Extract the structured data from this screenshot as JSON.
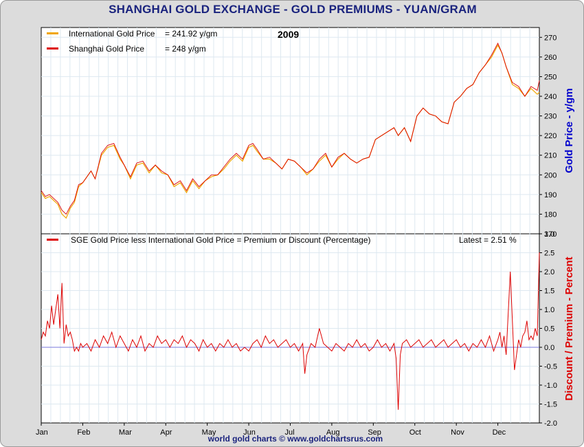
{
  "title": "SHANGHAI GOLD EXCHANGE - GOLD PREMIUMS - YUAN/GRAM",
  "footer": "world gold charts © www.goldchartsrus.com",
  "colors": {
    "intl": "#f0a500",
    "sge": "#dd0000",
    "axis_right_top": "#0000cc",
    "axis_right_bottom": "#dd0000",
    "zero_line": "#7777dd",
    "grid": "#dde8f0"
  },
  "chart_data": [
    {
      "type": "line",
      "year_label": "2009",
      "ylabel": "Gold Price - y/gm",
      "ylim": [
        170,
        275
      ],
      "yticks": [
        170,
        180,
        190,
        200,
        210,
        220,
        230,
        240,
        250,
        260,
        270
      ],
      "xticks": [
        "Jan",
        "Feb",
        "Mar",
        "Apr",
        "May",
        "Jun",
        "Jul",
        "Aug",
        "Sep",
        "Oct",
        "Nov",
        "Dec"
      ],
      "xlim": [
        0,
        12
      ],
      "legend": [
        {
          "label": "International Gold Price",
          "value_text": "= 241.92 y/gm"
        },
        {
          "label": "Shanghai Gold Price",
          "value_text": "= 248 y/gm"
        }
      ],
      "series": [
        {
          "name": "International Gold Price",
          "x": [
            0.0,
            0.1,
            0.2,
            0.3,
            0.4,
            0.5,
            0.6,
            0.7,
            0.8,
            0.9,
            1.0,
            1.1,
            1.2,
            1.3,
            1.45,
            1.6,
            1.75,
            1.9,
            2.0,
            2.15,
            2.3,
            2.45,
            2.6,
            2.75,
            2.9,
            3.05,
            3.2,
            3.35,
            3.5,
            3.65,
            3.8,
            3.95,
            4.1,
            4.25,
            4.4,
            4.55,
            4.7,
            4.85,
            5.0,
            5.1,
            5.2,
            5.35,
            5.5,
            5.65,
            5.8,
            5.95,
            6.1,
            6.25,
            6.4,
            6.55,
            6.7,
            6.85,
            7.0,
            7.15,
            7.3,
            7.45,
            7.6,
            7.75,
            7.9,
            8.05,
            8.2,
            8.35,
            8.5,
            8.6,
            8.75,
            8.9,
            9.05,
            9.2,
            9.35,
            9.5,
            9.65,
            9.8,
            9.95,
            10.1,
            10.25,
            10.4,
            10.55,
            10.7,
            10.85,
            11.0,
            11.1,
            11.2,
            11.35,
            11.5,
            11.65,
            11.8,
            11.95,
            12.0
          ],
          "y": [
            191,
            188,
            189,
            187,
            185,
            180,
            178,
            183,
            186,
            194,
            196,
            199,
            202,
            198,
            210,
            214,
            215,
            208,
            205,
            198,
            205,
            206,
            201,
            205,
            201,
            200,
            194,
            196,
            191,
            197,
            193,
            197,
            199,
            200,
            203,
            207,
            210,
            207,
            214,
            215,
            212,
            208,
            208,
            206,
            203,
            208,
            207,
            204,
            200,
            203,
            207,
            210,
            204,
            208,
            211,
            208,
            206,
            208,
            209,
            218,
            220,
            222,
            224,
            220,
            224,
            217,
            230,
            234,
            231,
            230,
            227,
            226,
            237,
            240,
            244,
            246,
            252,
            256,
            260,
            266,
            262,
            255,
            246,
            244,
            240,
            244,
            241,
            242
          ]
        },
        {
          "name": "Shanghai Gold Price",
          "x": [
            0.0,
            0.1,
            0.2,
            0.3,
            0.4,
            0.5,
            0.6,
            0.7,
            0.8,
            0.9,
            1.0,
            1.1,
            1.2,
            1.3,
            1.45,
            1.6,
            1.75,
            1.9,
            2.0,
            2.15,
            2.3,
            2.45,
            2.6,
            2.75,
            2.9,
            3.05,
            3.2,
            3.35,
            3.5,
            3.65,
            3.8,
            3.95,
            4.1,
            4.25,
            4.4,
            4.55,
            4.7,
            4.85,
            5.0,
            5.1,
            5.2,
            5.35,
            5.5,
            5.65,
            5.8,
            5.95,
            6.1,
            6.25,
            6.4,
            6.55,
            6.7,
            6.85,
            7.0,
            7.15,
            7.3,
            7.45,
            7.6,
            7.75,
            7.9,
            8.05,
            8.2,
            8.35,
            8.5,
            8.6,
            8.75,
            8.9,
            9.05,
            9.2,
            9.35,
            9.5,
            9.65,
            9.8,
            9.95,
            10.1,
            10.25,
            10.4,
            10.55,
            10.7,
            10.85,
            11.0,
            11.1,
            11.2,
            11.35,
            11.5,
            11.65,
            11.8,
            11.95,
            12.0
          ],
          "y": [
            192,
            189,
            190,
            188,
            186,
            182,
            180,
            184,
            187,
            195,
            196,
            199,
            202,
            198,
            211,
            215,
            216,
            209,
            205,
            199,
            206,
            207,
            202,
            205,
            202,
            200,
            195,
            197,
            192,
            198,
            194,
            197,
            200,
            200,
            204,
            208,
            211,
            208,
            215,
            216,
            213,
            208,
            209,
            206,
            203,
            208,
            207,
            204,
            201,
            203,
            208,
            211,
            204,
            209,
            211,
            208,
            206,
            208,
            209,
            218,
            220,
            222,
            224,
            220,
            224,
            217,
            230,
            234,
            231,
            230,
            227,
            226,
            237,
            240,
            244,
            246,
            252,
            256,
            261,
            267,
            262,
            255,
            247,
            245,
            240,
            245,
            243,
            248
          ]
        }
      ]
    },
    {
      "type": "line",
      "ylabel": "Discount / Premium - Percent",
      "ylim": [
        -2.0,
        3.0
      ],
      "yticks": [
        -2.0,
        -1.5,
        -1.0,
        -0.5,
        0.0,
        0.5,
        1.0,
        1.5,
        2.0,
        2.5,
        3.0
      ],
      "xticks": [
        "Jan",
        "Feb",
        "Mar",
        "Apr",
        "May",
        "Jun",
        "Jul",
        "Aug",
        "Sep",
        "Oct",
        "Nov",
        "Dec"
      ],
      "xlim": [
        0,
        12
      ],
      "legend": [
        {
          "label": "SGE Gold Price less International Gold Price = Premium or Discount (Percentage)"
        }
      ],
      "latest_text": "Latest = 2.51 %",
      "series": [
        {
          "name": "SGE Gold Price less International Gold Price = Premium or Discount (Percentage)",
          "x": [
            0.0,
            0.05,
            0.1,
            0.15,
            0.2,
            0.25,
            0.3,
            0.35,
            0.4,
            0.45,
            0.5,
            0.55,
            0.6,
            0.65,
            0.7,
            0.75,
            0.8,
            0.85,
            0.9,
            0.95,
            1.0,
            1.1,
            1.2,
            1.3,
            1.4,
            1.5,
            1.6,
            1.7,
            1.8,
            1.9,
            2.0,
            2.1,
            2.2,
            2.3,
            2.4,
            2.5,
            2.6,
            2.7,
            2.8,
            2.9,
            3.0,
            3.1,
            3.2,
            3.3,
            3.4,
            3.5,
            3.6,
            3.7,
            3.8,
            3.9,
            4.0,
            4.1,
            4.2,
            4.3,
            4.4,
            4.5,
            4.6,
            4.7,
            4.8,
            4.9,
            5.0,
            5.1,
            5.2,
            5.3,
            5.4,
            5.5,
            5.6,
            5.7,
            5.8,
            5.9,
            6.0,
            6.1,
            6.2,
            6.3,
            6.35,
            6.4,
            6.5,
            6.6,
            6.7,
            6.8,
            6.9,
            7.0,
            7.1,
            7.2,
            7.3,
            7.4,
            7.5,
            7.6,
            7.7,
            7.8,
            7.9,
            8.0,
            8.1,
            8.2,
            8.3,
            8.4,
            8.5,
            8.55,
            8.6,
            8.65,
            8.7,
            8.8,
            8.9,
            9.0,
            9.1,
            9.2,
            9.3,
            9.4,
            9.5,
            9.6,
            9.7,
            9.8,
            9.9,
            10.0,
            10.1,
            10.2,
            10.3,
            10.4,
            10.5,
            10.6,
            10.7,
            10.8,
            10.9,
            11.0,
            11.05,
            11.1,
            11.15,
            11.2,
            11.3,
            11.4,
            11.5,
            11.55,
            11.6,
            11.65,
            11.7,
            11.75,
            11.8,
            11.85,
            11.9,
            11.95,
            12.0
          ],
          "y": [
            0.2,
            0.4,
            0.3,
            0.7,
            0.5,
            1.1,
            0.6,
            1.0,
            1.4,
            0.5,
            1.7,
            0.1,
            0.6,
            0.3,
            0.4,
            0.2,
            -0.1,
            0.0,
            -0.1,
            0.1,
            0.0,
            0.1,
            -0.1,
            0.2,
            0.0,
            0.3,
            0.1,
            0.4,
            0.0,
            0.3,
            0.1,
            -0.1,
            0.2,
            0.0,
            0.3,
            -0.1,
            0.1,
            0.0,
            0.3,
            0.1,
            0.2,
            0.0,
            0.2,
            0.1,
            0.3,
            0.0,
            0.2,
            0.1,
            -0.1,
            0.2,
            0.0,
            0.1,
            -0.1,
            0.1,
            0.0,
            0.2,
            0.0,
            0.1,
            -0.1,
            0.0,
            -0.1,
            0.1,
            0.2,
            0.0,
            0.3,
            0.1,
            0.2,
            0.0,
            0.1,
            0.2,
            0.0,
            0.1,
            -0.1,
            0.1,
            -0.7,
            -0.2,
            0.1,
            0.0,
            0.5,
            0.1,
            0.0,
            -0.1,
            0.1,
            0.0,
            -0.1,
            0.1,
            0.0,
            0.2,
            0.0,
            0.1,
            -0.1,
            0.0,
            0.2,
            0.0,
            0.1,
            -0.1,
            0.1,
            -0.3,
            -1.65,
            -0.2,
            0.1,
            0.2,
            0.0,
            0.1,
            0.2,
            0.0,
            0.1,
            0.2,
            0.0,
            0.1,
            0.2,
            0.0,
            0.1,
            0.2,
            0.0,
            0.1,
            -0.1,
            0.1,
            0.0,
            0.2,
            0.0,
            0.3,
            -0.1,
            0.2,
            0.4,
            0.0,
            0.3,
            -0.2,
            2.0,
            -0.6,
            0.2,
            0.0,
            0.3,
            0.4,
            0.7,
            0.2,
            0.3,
            0.2,
            0.5,
            0.3,
            2.51
          ]
        }
      ]
    }
  ]
}
